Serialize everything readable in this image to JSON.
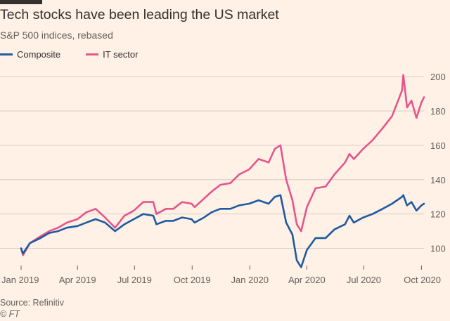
{
  "title": "Tech stocks have been leading the US market",
  "subtitle": "S&P 500 indices, rebased",
  "source": "Source: Refinitiv",
  "credit": "© FT",
  "colors": {
    "background": "#fff1e5",
    "composite": "#1e5aa0",
    "it_sector": "#e6558c",
    "grid": "#d9cdc3",
    "text": "#66605c"
  },
  "chart_data": {
    "type": "line",
    "title": "Tech stocks have been leading the US market",
    "subtitle": "S&P 500 indices, rebased",
    "xlabel": "",
    "ylabel": "",
    "ylim": [
      90,
      207
    ],
    "yticks": [
      100,
      120,
      140,
      160,
      180,
      200
    ],
    "xticks": [
      {
        "label": "Jan 2019",
        "date": "2019-01-01"
      },
      {
        "label": "Apr 2019",
        "date": "2019-04-01"
      },
      {
        "label": "Jul 2019",
        "date": "2019-07-01"
      },
      {
        "label": "Oct 2019",
        "date": "2019-10-01"
      },
      {
        "label": "Jan 2020",
        "date": "2020-01-01"
      },
      {
        "label": "Apr 2020",
        "date": "2020-04-01"
      },
      {
        "label": "Jul 2020",
        "date": "2020-07-01"
      },
      {
        "label": "Oct 2020",
        "date": "2020-10-01"
      }
    ],
    "xlim": [
      "2019-01-01",
      "2020-10-05"
    ],
    "y_axis_side": "right",
    "grid": true,
    "legend": "top-left",
    "series": [
      {
        "name": "Composite",
        "color": "#1e5aa0",
        "points": [
          [
            "2019-01-01",
            100
          ],
          [
            "2019-01-04",
            97
          ],
          [
            "2019-01-15",
            103
          ],
          [
            "2019-02-01",
            106
          ],
          [
            "2019-02-15",
            109
          ],
          [
            "2019-03-01",
            110
          ],
          [
            "2019-03-15",
            112
          ],
          [
            "2019-04-01",
            113
          ],
          [
            "2019-04-15",
            115
          ],
          [
            "2019-04-30",
            117
          ],
          [
            "2019-05-15",
            115
          ],
          [
            "2019-05-31",
            110
          ],
          [
            "2019-06-15",
            114
          ],
          [
            "2019-06-30",
            117
          ],
          [
            "2019-07-15",
            120
          ],
          [
            "2019-07-31",
            119
          ],
          [
            "2019-08-05",
            114
          ],
          [
            "2019-08-20",
            116
          ],
          [
            "2019-09-01",
            116
          ],
          [
            "2019-09-15",
            118
          ],
          [
            "2019-09-30",
            117
          ],
          [
            "2019-10-05",
            115
          ],
          [
            "2019-10-20",
            118
          ],
          [
            "2019-11-01",
            121
          ],
          [
            "2019-11-15",
            123
          ],
          [
            "2019-12-01",
            123
          ],
          [
            "2019-12-15",
            125
          ],
          [
            "2019-12-31",
            126
          ],
          [
            "2020-01-15",
            128
          ],
          [
            "2020-01-31",
            126
          ],
          [
            "2020-02-10",
            130
          ],
          [
            "2020-02-19",
            131
          ],
          [
            "2020-02-28",
            115
          ],
          [
            "2020-03-09",
            108
          ],
          [
            "2020-03-16",
            93
          ],
          [
            "2020-03-23",
            89
          ],
          [
            "2020-04-01",
            99
          ],
          [
            "2020-04-15",
            106
          ],
          [
            "2020-05-01",
            106
          ],
          [
            "2020-05-15",
            111
          ],
          [
            "2020-06-01",
            114
          ],
          [
            "2020-06-08",
            119
          ],
          [
            "2020-06-15",
            115
          ],
          [
            "2020-06-30",
            118
          ],
          [
            "2020-07-15",
            120
          ],
          [
            "2020-07-31",
            123
          ],
          [
            "2020-08-15",
            126
          ],
          [
            "2020-08-31",
            130
          ],
          [
            "2020-09-02",
            131
          ],
          [
            "2020-09-08",
            125
          ],
          [
            "2020-09-15",
            127
          ],
          [
            "2020-09-23",
            122
          ],
          [
            "2020-10-01",
            125
          ],
          [
            "2020-10-05",
            126
          ]
        ]
      },
      {
        "name": "IT sector",
        "color": "#e6558c",
        "points": [
          [
            "2019-01-01",
            100
          ],
          [
            "2019-01-04",
            96
          ],
          [
            "2019-01-15",
            103
          ],
          [
            "2019-02-01",
            107
          ],
          [
            "2019-02-15",
            110
          ],
          [
            "2019-03-01",
            112
          ],
          [
            "2019-03-15",
            115
          ],
          [
            "2019-04-01",
            117
          ],
          [
            "2019-04-15",
            121
          ],
          [
            "2019-04-30",
            123
          ],
          [
            "2019-05-15",
            118
          ],
          [
            "2019-05-31",
            112
          ],
          [
            "2019-06-15",
            119
          ],
          [
            "2019-06-30",
            122
          ],
          [
            "2019-07-15",
            127
          ],
          [
            "2019-07-31",
            127
          ],
          [
            "2019-08-05",
            120
          ],
          [
            "2019-08-20",
            123
          ],
          [
            "2019-09-01",
            123
          ],
          [
            "2019-09-15",
            127
          ],
          [
            "2019-09-30",
            126
          ],
          [
            "2019-10-05",
            124
          ],
          [
            "2019-10-20",
            129
          ],
          [
            "2019-11-01",
            133
          ],
          [
            "2019-11-15",
            137
          ],
          [
            "2019-12-01",
            138
          ],
          [
            "2019-12-15",
            143
          ],
          [
            "2019-12-31",
            146
          ],
          [
            "2020-01-15",
            152
          ],
          [
            "2020-01-31",
            150
          ],
          [
            "2020-02-10",
            158
          ],
          [
            "2020-02-19",
            160
          ],
          [
            "2020-02-28",
            140
          ],
          [
            "2020-03-09",
            128
          ],
          [
            "2020-03-16",
            114
          ],
          [
            "2020-03-23",
            110
          ],
          [
            "2020-04-01",
            124
          ],
          [
            "2020-04-15",
            135
          ],
          [
            "2020-05-01",
            136
          ],
          [
            "2020-05-15",
            143
          ],
          [
            "2020-06-01",
            150
          ],
          [
            "2020-06-08",
            155
          ],
          [
            "2020-06-15",
            152
          ],
          [
            "2020-06-30",
            158
          ],
          [
            "2020-07-15",
            163
          ],
          [
            "2020-07-31",
            170
          ],
          [
            "2020-08-15",
            177
          ],
          [
            "2020-08-31",
            192
          ],
          [
            "2020-09-02",
            201
          ],
          [
            "2020-09-08",
            182
          ],
          [
            "2020-09-15",
            186
          ],
          [
            "2020-09-23",
            176
          ],
          [
            "2020-10-01",
            185
          ],
          [
            "2020-10-05",
            188
          ]
        ]
      }
    ]
  }
}
